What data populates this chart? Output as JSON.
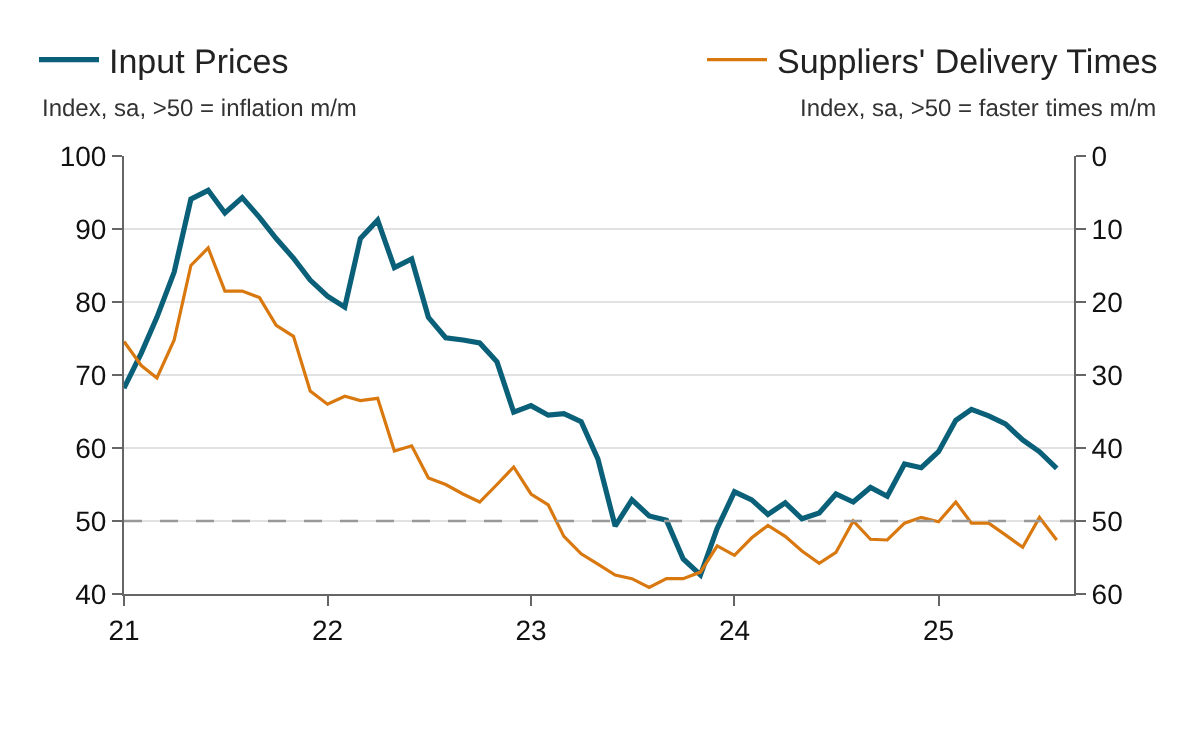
{
  "chart_data": {
    "type": "line",
    "ylabel": "Index, sa, >50 = inflation m/m",
    "y2label": "Index, sa, >50 = faster times m/m",
    "x": [
      "2021-01",
      "2021-02",
      "2021-03",
      "2021-04",
      "2021-05",
      "2021-06",
      "2021-07",
      "2021-08",
      "2021-09",
      "2021-10",
      "2021-11",
      "2021-12",
      "2022-01",
      "2022-02",
      "2022-03",
      "2022-04",
      "2022-05",
      "2022-06",
      "2022-07",
      "2022-08",
      "2022-09",
      "2022-10",
      "2022-11",
      "2022-12",
      "2023-01",
      "2023-02",
      "2023-03",
      "2023-04",
      "2023-05",
      "2023-06",
      "2023-07",
      "2023-08",
      "2023-09",
      "2023-10",
      "2023-11",
      "2023-12",
      "2024-01",
      "2024-02",
      "2024-03",
      "2024-04",
      "2024-05",
      "2024-06",
      "2024-07",
      "2024-08",
      "2024-09",
      "2024-10",
      "2024-11",
      "2024-12",
      "2025-01",
      "2025-02",
      "2025-03",
      "2025-04",
      "2025-05",
      "2025-06",
      "2025-07",
      "2025-08"
    ],
    "series": [
      {
        "name": "Input Prices",
        "color": "#0b6079",
        "values": [
          68.2,
          73,
          77.9,
          84.1,
          94.1,
          95.3,
          92.2,
          94.3,
          91.6,
          88.7,
          86,
          83,
          80.8,
          79.3,
          88.7,
          91.2,
          84.7,
          85.9,
          77.9,
          75.1,
          74.8,
          74.4,
          71.8,
          64.9,
          65.8,
          64.5,
          64.7,
          63.6,
          58.5,
          49.3,
          52.9,
          50.7,
          50.1,
          44.8,
          42.6,
          49,
          54,
          52.9,
          50.9,
          52.5,
          50.3,
          51.1,
          53.7,
          52.6,
          54.6,
          53.4,
          57.8,
          57.3,
          59.5,
          63.8,
          65.3,
          64.4,
          63.3,
          61.1,
          59.5,
          57.2
        ]
      },
      {
        "name": "Suppliers' Delivery Times",
        "color": "#d9780f",
        "axis": "y2",
        "values": [
          25.4,
          28.7,
          30.4,
          25.2,
          15,
          12.6,
          18.5,
          18.5,
          19.4,
          23.2,
          24.7,
          32.2,
          34,
          32.9,
          33.5,
          33.2,
          40.4,
          39.7,
          44.1,
          45,
          46.3,
          47.4,
          45,
          42.6,
          46.3,
          47.8,
          52.1,
          54.5,
          55.9,
          57.4,
          57.9,
          59.1,
          57.9,
          57.9,
          57,
          53.4,
          54.7,
          52.3,
          50.6,
          52.1,
          54.1,
          55.8,
          54.3,
          50,
          52.5,
          52.6,
          50.3,
          49.5,
          50.1,
          47.4,
          50.3,
          50.3,
          51.9,
          53.6,
          49.5,
          52.6
        ]
      }
    ],
    "xlim": [
      "2021-01",
      "2025-09"
    ],
    "xticks": [
      {
        "value": "2021-01",
        "label": "21"
      },
      {
        "value": "2022-01",
        "label": "22"
      },
      {
        "value": "2023-01",
        "label": "23"
      },
      {
        "value": "2024-01",
        "label": "24"
      },
      {
        "value": "2025-01",
        "label": "25"
      }
    ],
    "ylim": [
      40,
      100
    ],
    "yticks": [
      40,
      50,
      60,
      70,
      80,
      90,
      100
    ],
    "y2lim": [
      60,
      0
    ],
    "y2ticks": [
      0,
      10,
      20,
      30,
      40,
      50,
      60
    ],
    "ref_lines": [
      {
        "axis": "y",
        "value": 50,
        "color": "#999999",
        "line_style": "dashed"
      }
    ],
    "grid": "y",
    "legend": "top"
  }
}
